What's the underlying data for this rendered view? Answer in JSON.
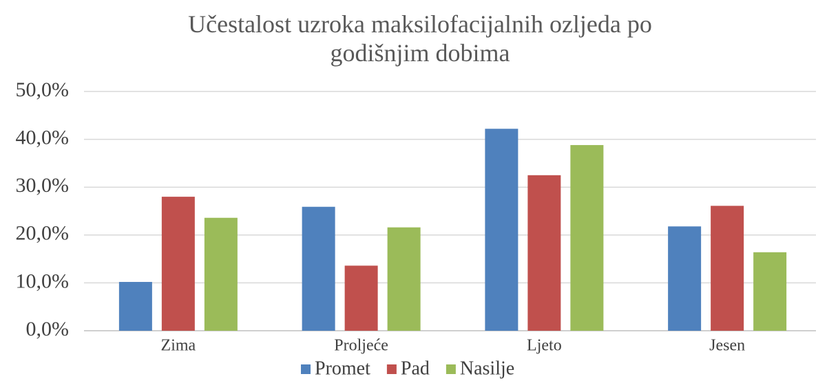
{
  "chart_data": {
    "type": "bar",
    "title": "Učestalost uzroka maksilofacijalnih ozljeda po godišnjim dobima",
    "categories": [
      "Zima",
      "Proljeće",
      "Ljeto",
      "Jesen"
    ],
    "series": [
      {
        "name": "Promet",
        "color": "#4f81bd",
        "values": [
          10.2,
          25.9,
          42.2,
          21.8
        ]
      },
      {
        "name": "Pad",
        "color": "#c0504d",
        "values": [
          28.0,
          13.6,
          32.5,
          26.1
        ]
      },
      {
        "name": "Nasilje",
        "color": "#9bbb59",
        "values": [
          23.6,
          21.6,
          38.8,
          16.4
        ]
      }
    ],
    "ylim": [
      0,
      50
    ],
    "yticks": [
      {
        "value": 0,
        "label": "0,0%"
      },
      {
        "value": 10,
        "label": "10,0%"
      },
      {
        "value": 20,
        "label": "20,0%"
      },
      {
        "value": 30,
        "label": "30,0%"
      },
      {
        "value": 40,
        "label": "40,0%"
      },
      {
        "value": 50,
        "label": "50,0%"
      }
    ],
    "grid": true,
    "legend": "bottom"
  }
}
